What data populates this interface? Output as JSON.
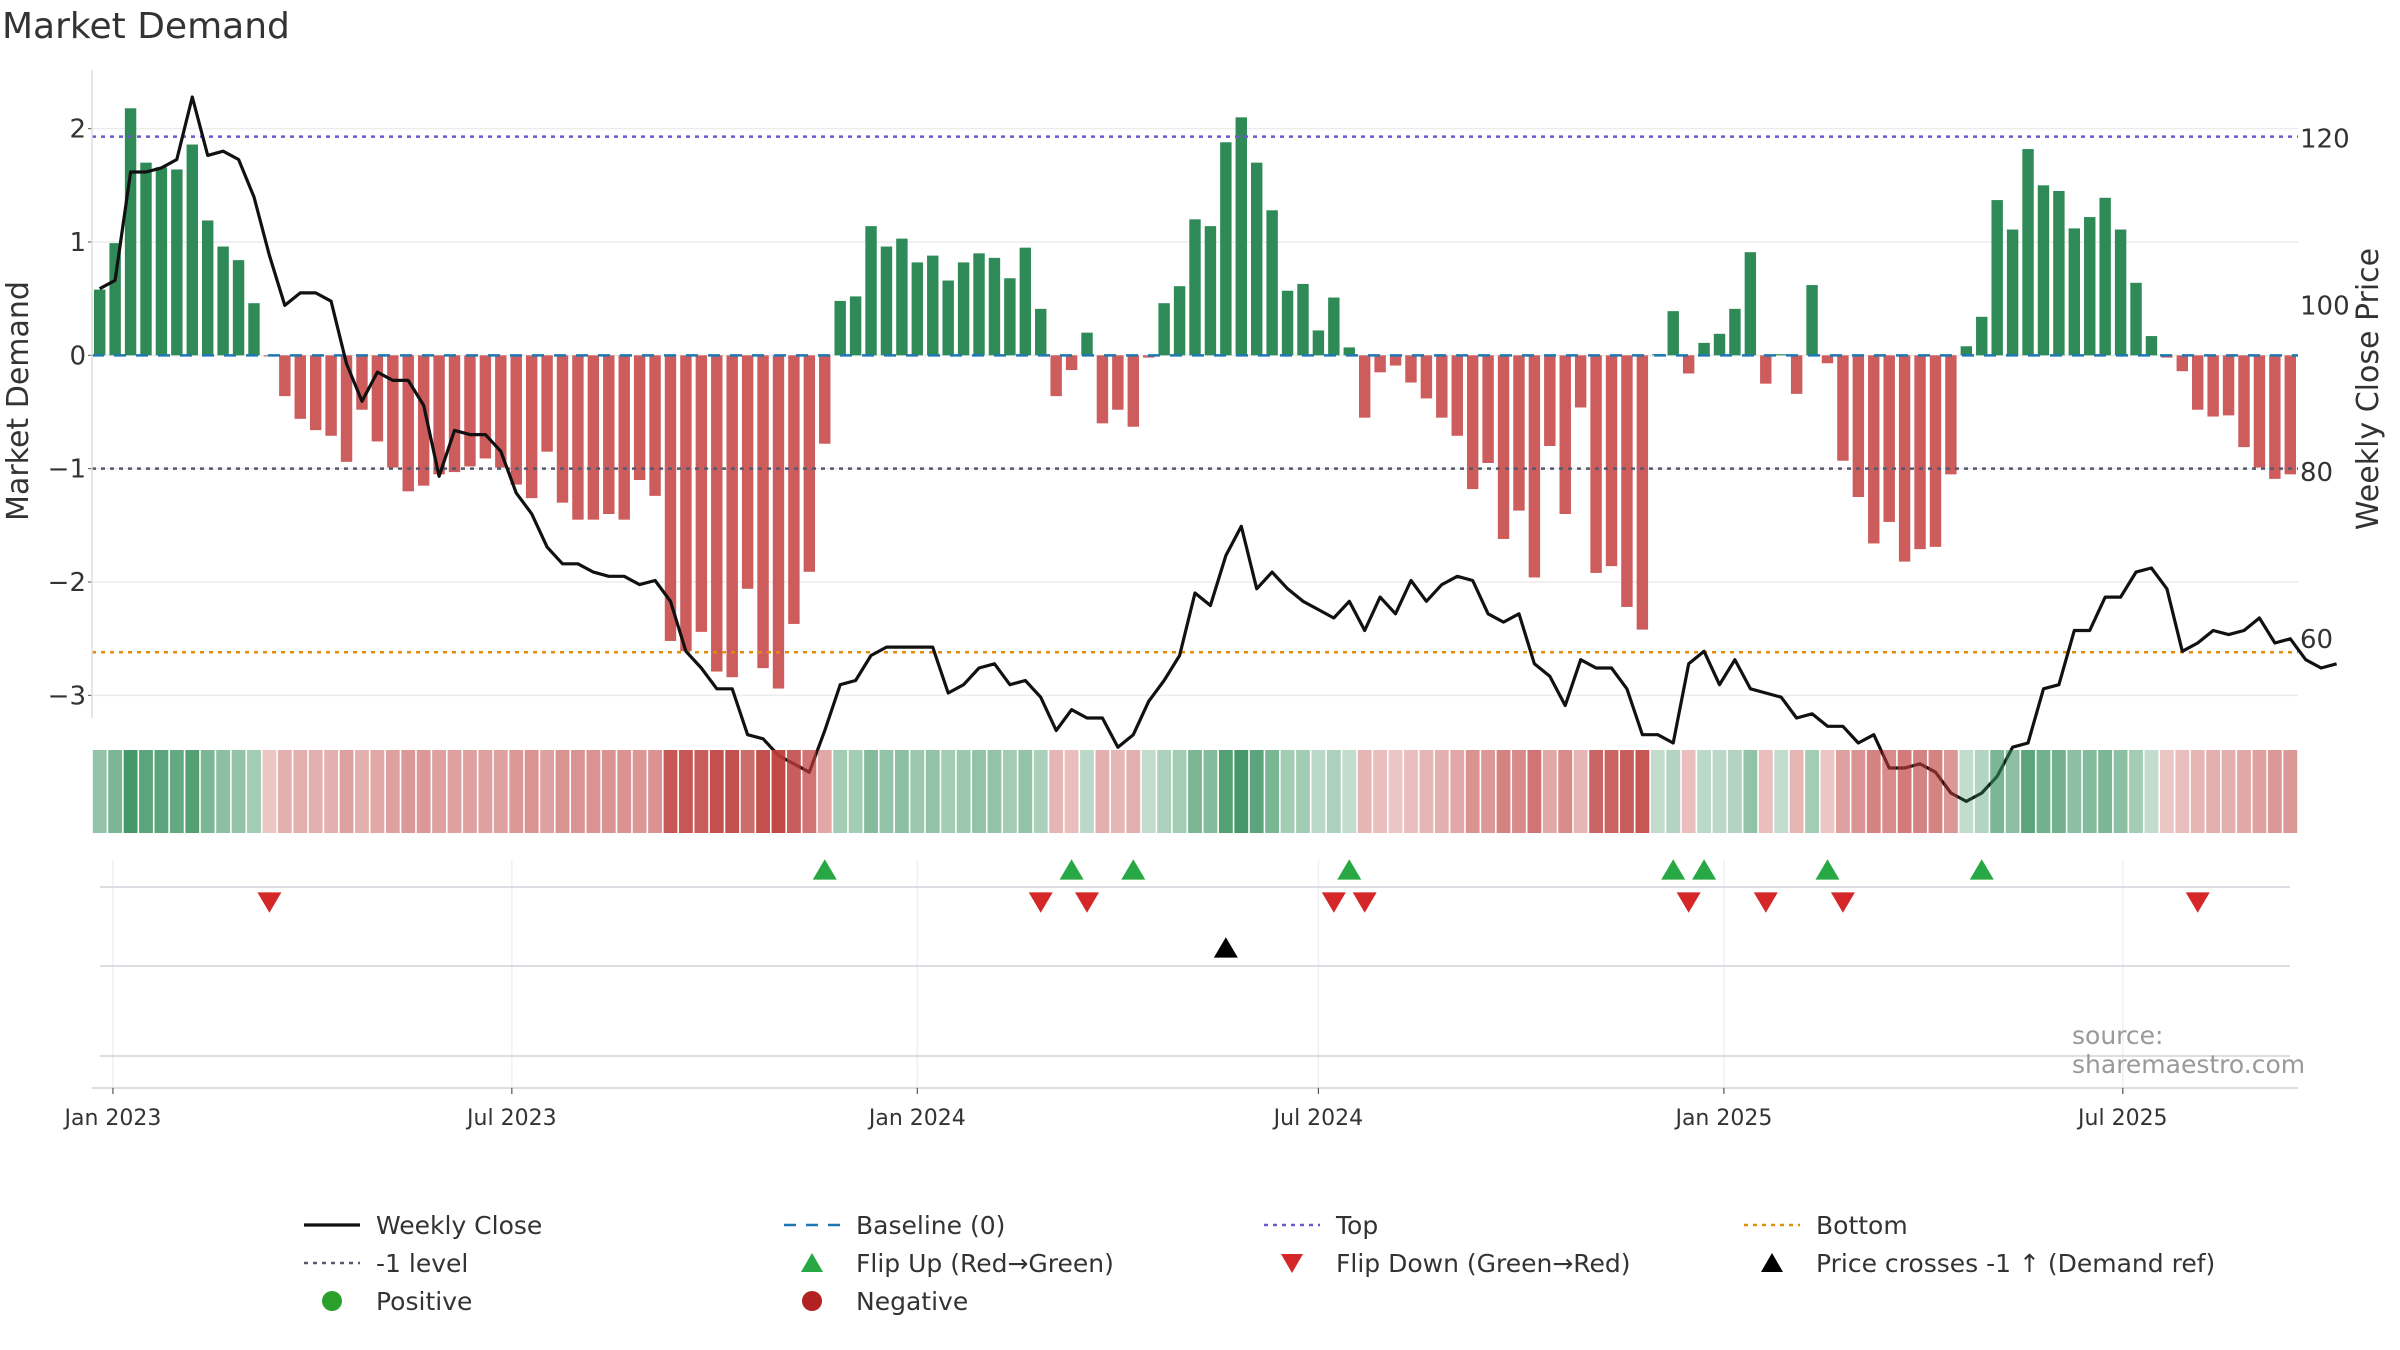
{
  "title": "Market Demand",
  "source": "source: sharemaestro.com",
  "colors": {
    "positive_bar": "#2e8b57",
    "negative_bar": "#cd5c5c",
    "price_line": "#111111",
    "top_line": "#6a5acd",
    "bottom_line": "#e08e0b",
    "minus1_line": "#555a6e",
    "baseline": "#1f77b4",
    "flip_up": "#27a844",
    "flip_down": "#d62728",
    "cross_marker": "#000000",
    "positive_dot": "#2ca02c",
    "negative_dot": "#b22222"
  },
  "legend": [
    {
      "label": "Weekly Close",
      "icon": "solid-line",
      "color": "#111111"
    },
    {
      "label": "Baseline (0)",
      "icon": "dashed-line",
      "color": "#1f77b4"
    },
    {
      "label": "Top",
      "icon": "dotted-line",
      "color": "#6a5acd"
    },
    {
      "label": "Bottom",
      "icon": "dotted-line",
      "color": "#e08e0b"
    },
    {
      "label": "-1 level",
      "icon": "dotted-line",
      "color": "#555a6e"
    },
    {
      "label": "Flip Up (Red→Green)",
      "icon": "triangle-up",
      "color": "#27a844"
    },
    {
      "label": "Flip Down (Green→Red)",
      "icon": "triangle-down",
      "color": "#d62728"
    },
    {
      "label": "Price crosses -1 ↑ (Demand ref)",
      "icon": "triangle-up",
      "color": "#000000"
    },
    {
      "label": "Positive",
      "icon": "circle",
      "color": "#2ca02c"
    },
    {
      "label": "Negative",
      "icon": "circle",
      "color": "#b22222"
    }
  ],
  "chart_data": {
    "type": "bar",
    "ylabel": "Market Demand",
    "y2label": "Weekly Close Price",
    "ylim": [
      -3.2,
      2.5
    ],
    "y2lim": [
      50.5,
      128
    ],
    "yticks": [
      2,
      1,
      0,
      -1,
      -2,
      -3
    ],
    "y2ticks": [
      120,
      100,
      80,
      60
    ],
    "x_start": "2022-12-26",
    "x_step_days": 7,
    "xticks": [
      "Jan 2023",
      "Jul 2023",
      "Jan 2024",
      "Jul 2024",
      "Jan 2025",
      "Jul 2025"
    ],
    "xtick_dates": [
      "2023-01-01",
      "2023-07-01",
      "2024-01-01",
      "2024-07-01",
      "2025-01-01",
      "2025-07-01"
    ],
    "reference_lines": {
      "top": 1.93,
      "minus1": -1.0,
      "bottom": -2.62,
      "baseline": 0
    },
    "series": [
      {
        "name": "Market Demand",
        "values": [
          0.58,
          0.99,
          2.18,
          1.7,
          1.66,
          1.64,
          1.86,
          1.19,
          0.96,
          0.84,
          0.46,
          -0.01,
          -0.36,
          -0.56,
          -0.66,
          -0.71,
          -0.94,
          -0.48,
          -0.76,
          -0.99,
          -1.2,
          -1.15,
          -1.05,
          -1.03,
          -0.98,
          -0.91,
          -0.99,
          -1.14,
          -1.26,
          -0.85,
          -1.3,
          -1.45,
          -1.45,
          -1.4,
          -1.45,
          -1.1,
          -1.24,
          -2.52,
          -2.61,
          -2.44,
          -2.79,
          -2.84,
          -2.06,
          -2.76,
          -2.94,
          -2.37,
          -1.91,
          -0.78,
          0.48,
          0.52,
          1.14,
          0.96,
          1.03,
          0.82,
          0.88,
          0.66,
          0.82,
          0.9,
          0.86,
          0.68,
          0.95,
          0.41,
          -0.36,
          -0.13,
          0.2,
          -0.6,
          -0.48,
          -0.63,
          -0.02,
          0.46,
          0.61,
          1.2,
          1.14,
          1.88,
          2.1,
          1.7,
          1.28,
          0.57,
          0.63,
          0.22,
          0.51,
          0.07,
          -0.55,
          -0.15,
          -0.09,
          -0.24,
          -0.38,
          -0.55,
          -0.71,
          -1.18,
          -0.95,
          -1.62,
          -1.37,
          -1.96,
          -0.8,
          -1.4,
          -0.46,
          -1.92,
          -1.86,
          -2.22,
          -2.42,
          0.01,
          0.39,
          -0.16,
          0.11,
          0.19,
          0.41,
          0.91,
          -0.25,
          0.01,
          -0.34,
          0.62,
          -0.07,
          -0.93,
          -1.25,
          -1.66,
          -1.47,
          -1.82,
          -1.71,
          -1.69,
          -1.05,
          0.08,
          0.34,
          1.37,
          1.11,
          1.82,
          1.5,
          1.45,
          1.12,
          1.22,
          1.39,
          1.11,
          0.64,
          0.17,
          -0.02,
          -0.14,
          -0.48,
          -0.54,
          -0.53,
          -0.81,
          -0.99,
          -1.09,
          -1.05
        ]
      },
      {
        "name": "Weekly Close",
        "values": [
          102,
          103,
          116,
          116,
          116.5,
          117.5,
          125,
          118,
          118.5,
          117.5,
          113,
          106,
          100,
          101.5,
          101.5,
          100.5,
          93,
          88.5,
          92,
          91,
          91,
          88,
          79.5,
          85,
          84.5,
          84.5,
          82.5,
          77.5,
          75,
          71,
          69,
          69,
          68,
          67.5,
          67.5,
          66.5,
          67,
          64.5,
          58.5,
          56.5,
          54,
          54,
          48.5,
          48,
          46,
          45,
          44,
          49,
          54.5,
          55,
          58,
          59,
          59,
          59,
          59,
          53.5,
          54.5,
          56.5,
          57,
          54.5,
          55,
          53,
          49,
          51.5,
          50.5,
          50.5,
          47,
          48.5,
          52.5,
          55,
          58,
          65.5,
          64,
          70,
          73.5,
          66,
          68,
          66,
          64.5,
          63.5,
          62.5,
          64.5,
          61,
          65,
          63,
          67,
          64.5,
          66.5,
          67.5,
          67,
          63,
          62,
          63,
          57,
          55.5,
          52,
          57.5,
          56.5,
          56.5,
          54,
          48.5,
          48.5,
          47.5,
          57,
          58.5,
          54.5,
          57.5,
          54,
          53.5,
          53,
          50.5,
          51,
          49.5,
          49.5,
          47.5,
          48.5,
          44.5,
          44.5,
          45,
          44,
          41.5,
          40.5,
          41.5,
          43.5,
          47,
          47.5,
          54,
          54.5,
          61,
          61,
          65,
          65,
          68,
          68.5,
          66,
          58.5,
          59.5,
          61,
          60.5,
          61,
          62.5,
          59.5,
          60,
          57.5,
          56.5,
          57
        ]
      }
    ],
    "color_strip": {
      "rows": 1,
      "levels": [
        0.45,
        0.6,
        0.95,
        0.8,
        0.8,
        0.75,
        0.85,
        0.6,
        0.5,
        0.45,
        0.35,
        -0.15,
        -0.3,
        -0.3,
        -0.3,
        -0.3,
        -0.4,
        -0.3,
        -0.35,
        -0.4,
        -0.45,
        -0.45,
        -0.4,
        -0.4,
        -0.4,
        -0.4,
        -0.4,
        -0.45,
        -0.5,
        -0.4,
        -0.5,
        -0.5,
        -0.5,
        -0.5,
        -0.5,
        -0.45,
        -0.5,
        -0.9,
        -0.9,
        -0.85,
        -0.95,
        -0.95,
        -0.75,
        -0.95,
        -1.0,
        -0.85,
        -0.7,
        -0.35,
        0.35,
        0.35,
        0.55,
        0.45,
        0.5,
        0.4,
        0.45,
        0.35,
        0.4,
        0.45,
        0.45,
        0.35,
        0.45,
        0.3,
        -0.25,
        -0.2,
        0.2,
        -0.3,
        -0.25,
        -0.3,
        0.15,
        0.3,
        0.35,
        0.6,
        0.55,
        0.85,
        0.95,
        0.8,
        0.6,
        0.35,
        0.35,
        0.2,
        0.3,
        0.15,
        -0.25,
        -0.2,
        -0.15,
        -0.2,
        -0.25,
        -0.3,
        -0.35,
        -0.5,
        -0.45,
        -0.6,
        -0.55,
        -0.7,
        -0.35,
        -0.55,
        -0.25,
        -0.8,
        -0.8,
        -0.85,
        -0.9,
        0.15,
        0.25,
        -0.2,
        0.2,
        0.2,
        0.25,
        0.45,
        -0.2,
        0.15,
        -0.25,
        0.35,
        -0.15,
        -0.4,
        -0.5,
        -0.6,
        -0.55,
        -0.65,
        -0.6,
        -0.6,
        -0.45,
        0.15,
        0.25,
        0.6,
        0.5,
        0.8,
        0.65,
        0.65,
        0.5,
        0.55,
        0.6,
        0.5,
        0.35,
        0.15,
        -0.15,
        -0.2,
        -0.25,
        -0.3,
        -0.3,
        -0.35,
        -0.4,
        -0.45,
        -0.45
      ]
    },
    "flip_up": [
      47,
      63,
      67,
      81,
      102,
      104,
      112,
      122
    ],
    "flip_down": [
      11,
      61,
      64,
      80,
      82,
      103,
      108,
      113,
      136
    ],
    "price_cross_up": [
      73
    ]
  }
}
